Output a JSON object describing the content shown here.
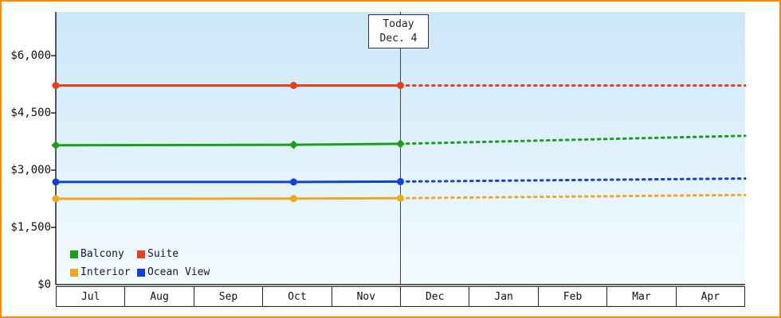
{
  "frame": {
    "border_color": "#ff8c00",
    "background": "#ffffff"
  },
  "chart_data": {
    "type": "line",
    "x_axis": {
      "categories": [
        "Jul",
        "Aug",
        "Sep",
        "Oct",
        "Nov",
        "Dec",
        "Jan",
        "Feb",
        "Mar",
        "Apr"
      ],
      "range": [
        0,
        10
      ]
    },
    "y_axis": {
      "ticks": [
        0,
        1500,
        3000,
        4500,
        6000
      ],
      "tick_labels": [
        "$0",
        "$1,500",
        "$3,000",
        "$4,500",
        "$6,000"
      ],
      "ylim": [
        0,
        7150
      ]
    },
    "grid": false,
    "today_marker": {
      "x": 5.0,
      "label": "Today",
      "date": "Dec. 4"
    },
    "series": [
      {
        "name": "Suite",
        "color": "#e8401a",
        "marker": "circle",
        "observed": {
          "x": [
            0,
            3.45,
            5.0
          ],
          "y": [
            5220,
            5220,
            5220
          ]
        },
        "forecast": {
          "x": [
            5.0,
            10
          ],
          "y": [
            5220,
            5220
          ]
        }
      },
      {
        "name": "Balcony",
        "color": "#1ca01c",
        "marker": "diamond",
        "observed": {
          "x": [
            0,
            3.45,
            5.0
          ],
          "y": [
            3650,
            3665,
            3690
          ]
        },
        "forecast": {
          "x": [
            5.0,
            10
          ],
          "y": [
            3690,
            3900
          ]
        }
      },
      {
        "name": "Ocean View",
        "color": "#1540d8",
        "marker": "circle",
        "observed": {
          "x": [
            0,
            3.45,
            5.0
          ],
          "y": [
            2690,
            2690,
            2700
          ]
        },
        "forecast": {
          "x": [
            5.0,
            10
          ],
          "y": [
            2700,
            2780
          ]
        }
      },
      {
        "name": "Interior",
        "color": "#f0a81e",
        "marker": "circle",
        "observed": {
          "x": [
            0,
            3.45,
            5.0
          ],
          "y": [
            2250,
            2255,
            2265
          ]
        },
        "forecast": {
          "x": [
            5.0,
            10
          ],
          "y": [
            2265,
            2350
          ]
        }
      }
    ],
    "legend": {
      "position": "bottom-left-inside",
      "items": [
        {
          "label": "Balcony",
          "color": "#1ca01c"
        },
        {
          "label": "Suite",
          "color": "#e8401a"
        },
        {
          "label": "Interior",
          "color": "#f0a81e"
        },
        {
          "label": "Ocean View",
          "color": "#1540d8"
        }
      ]
    },
    "plot_background": {
      "gradient_top": "#cbe7f8",
      "gradient_bottom": "#f4fbff"
    }
  }
}
